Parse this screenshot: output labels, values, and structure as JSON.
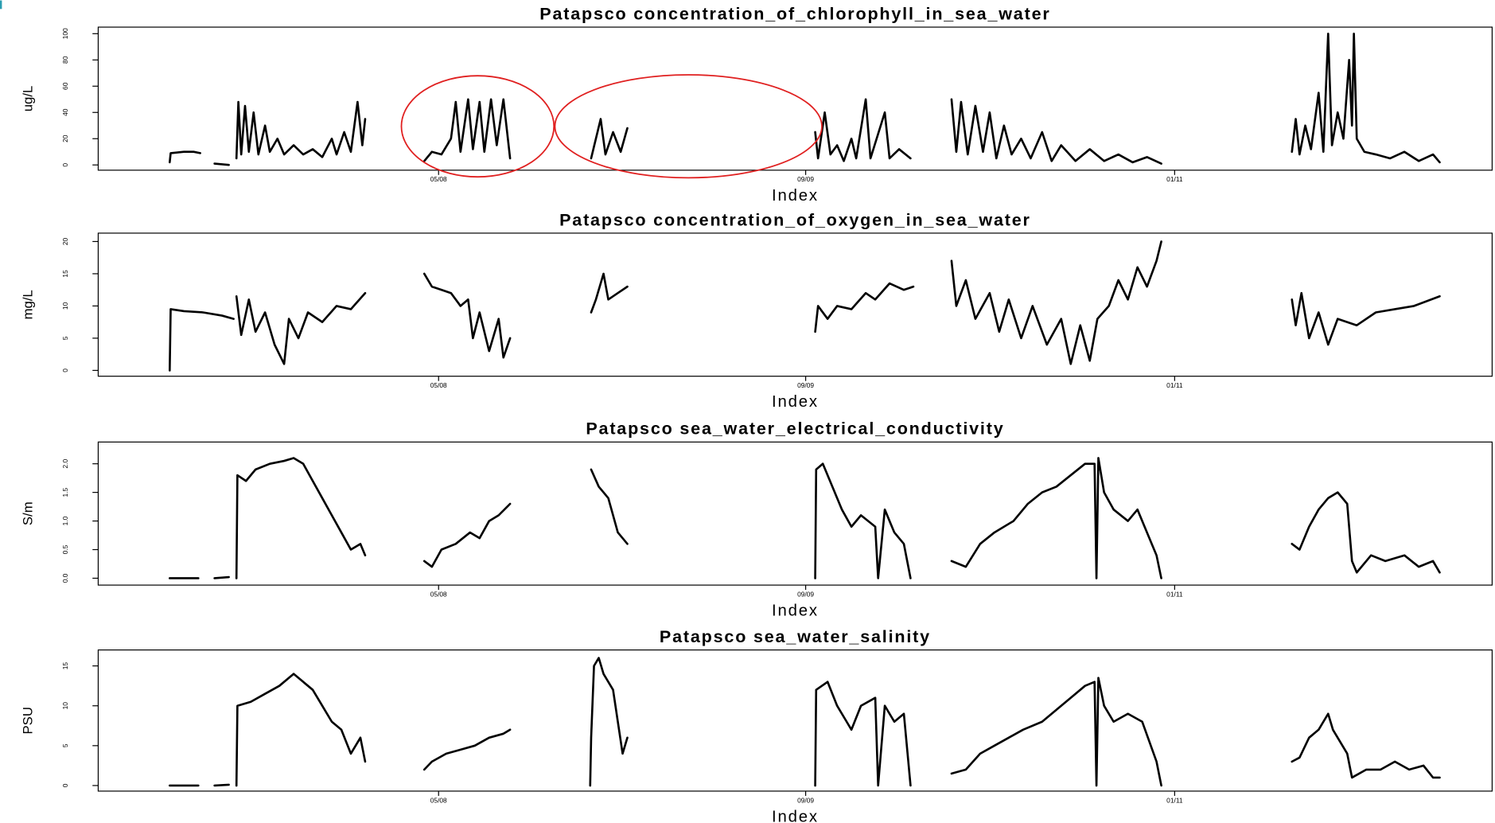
{
  "chart_data": [
    {
      "type": "line",
      "title": "Patapsco concentration_of_chlorophyll_in_sea_water",
      "xlabel": "Index",
      "ylabel": "ug/L",
      "color": "#000000",
      "xlim": [
        0,
        1462
      ],
      "xticks": [
        {
          "value": 357,
          "label": "05/08"
        },
        {
          "value": 742,
          "label": "09/09"
        },
        {
          "value": 1129,
          "label": "01/11"
        }
      ],
      "ylim": [
        -4,
        105
      ],
      "yticks": [
        0,
        20,
        40,
        60,
        80,
        100
      ],
      "x": [
        75,
        76,
        90,
        100,
        107,
        115,
        122,
        137,
        141,
        145,
        147,
        150,
        154,
        158,
        163,
        168,
        175,
        180,
        188,
        195,
        205,
        215,
        225,
        235,
        245,
        250,
        258,
        265,
        272,
        277,
        280,
        311,
        342,
        350,
        360,
        370,
        375,
        380,
        388,
        393,
        400,
        405,
        412,
        418,
        425,
        432,
        475,
        517,
        522,
        527,
        532,
        540,
        548,
        555,
        643,
        730,
        741,
        752,
        755,
        762,
        768,
        775,
        782,
        790,
        795,
        805,
        810,
        825,
        830,
        840,
        852,
        874,
        895,
        900,
        905,
        912,
        920,
        928,
        935,
        942,
        950,
        958,
        968,
        978,
        990,
        1000,
        1010,
        1025,
        1040,
        1055,
        1070,
        1085,
        1100,
        1115,
        1184,
        1252,
        1256,
        1260,
        1266,
        1272,
        1280,
        1285,
        1290,
        1294,
        1300,
        1306,
        1312,
        1315,
        1317,
        1320,
        1328,
        1340,
        1355,
        1370,
        1385,
        1400,
        1407
      ],
      "values": [
        2,
        9,
        10,
        10,
        9,
        null,
        1,
        0,
        null,
        5,
        48,
        8,
        45,
        10,
        40,
        8,
        30,
        10,
        20,
        8,
        15,
        8,
        12,
        6,
        20,
        8,
        25,
        10,
        48,
        15,
        35,
        null,
        3,
        10,
        8,
        20,
        48,
        10,
        50,
        12,
        48,
        10,
        50,
        15,
        50,
        5,
        null,
        5,
        20,
        35,
        8,
        25,
        10,
        28,
        null,
        0,
        null,
        25,
        5,
        40,
        8,
        15,
        3,
        20,
        5,
        50,
        5,
        40,
        5,
        12,
        5,
        null,
        50,
        10,
        48,
        8,
        45,
        10,
        40,
        5,
        30,
        8,
        20,
        5,
        25,
        3,
        15,
        3,
        12,
        3,
        8,
        2,
        6,
        1,
        null,
        10,
        35,
        8,
        30,
        12,
        55,
        10,
        100,
        15,
        40,
        20,
        80,
        30,
        100,
        20,
        10,
        8,
        5,
        10,
        3,
        8,
        2
      ]
    },
    {
      "type": "line",
      "title": "Patapsco concentration_of_oxygen_in_sea_water",
      "xlabel": "Index",
      "ylabel": "mg/L",
      "color": "#000000",
      "xlim": [
        0,
        1462
      ],
      "xticks": [
        {
          "value": 357,
          "label": "05/08"
        },
        {
          "value": 742,
          "label": "09/09"
        },
        {
          "value": 1129,
          "label": "01/11"
        }
      ],
      "ylim": [
        -0.9,
        21.3
      ],
      "yticks": [
        0,
        5,
        10,
        15,
        20
      ],
      "x": [
        75,
        76,
        90,
        110,
        130,
        142,
        143,
        145,
        150,
        158,
        165,
        175,
        185,
        195,
        200,
        210,
        220,
        235,
        250,
        265,
        280,
        311,
        342,
        350,
        360,
        370,
        380,
        388,
        393,
        400,
        410,
        420,
        425,
        432,
        475,
        517,
        522,
        530,
        535,
        545,
        555,
        640,
        728,
        740,
        752,
        755,
        765,
        775,
        790,
        805,
        815,
        830,
        845,
        855,
        875,
        895,
        900,
        910,
        920,
        935,
        945,
        955,
        968,
        980,
        995,
        1010,
        1020,
        1030,
        1040,
        1048,
        1060,
        1070,
        1080,
        1090,
        1100,
        1110,
        1115,
        1184,
        1252,
        1256,
        1262,
        1270,
        1280,
        1290,
        1300,
        1320,
        1340,
        1360,
        1380,
        1407
      ],
      "values": [
        0,
        9.5,
        9.2,
        9,
        8.5,
        8,
        null,
        11.5,
        5.5,
        11,
        6,
        9,
        4,
        1,
        8,
        5,
        9,
        7.5,
        10,
        9.5,
        12,
        null,
        15,
        13,
        12.5,
        12,
        10,
        11,
        5,
        9,
        3,
        8,
        2,
        5,
        null,
        9,
        11,
        15,
        11,
        12,
        13,
        null,
        6,
        null,
        6,
        10,
        8,
        10,
        9.5,
        12,
        11,
        13.5,
        12.5,
        13,
        null,
        17,
        10,
        14,
        8,
        12,
        6,
        11,
        5,
        10,
        4,
        8,
        1,
        7,
        1.5,
        8,
        10,
        14,
        11,
        16,
        13,
        17,
        20,
        null,
        11,
        7,
        12,
        5,
        9,
        4,
        8,
        7,
        9,
        9.5,
        10,
        11.5
      ]
    },
    {
      "type": "line",
      "title": "Patapsco sea_water_electrical_conductivity",
      "xlabel": "Index",
      "ylabel": "S/m",
      "color": "#000000",
      "xlim": [
        0,
        1462
      ],
      "xticks": [
        {
          "value": 357,
          "label": "05/08"
        },
        {
          "value": 742,
          "label": "09/09"
        },
        {
          "value": 1129,
          "label": "01/11"
        }
      ],
      "ylim": [
        -0.12,
        2.38
      ],
      "yticks": [
        {
          "value": 0,
          "label": "0.0"
        },
        0.5,
        {
          "value": 1,
          "label": "1.0"
        },
        1.5,
        {
          "value": 2,
          "label": "2.0"
        }
      ],
      "x": [
        75,
        105,
        113,
        122,
        137,
        141,
        145,
        146,
        155,
        165,
        180,
        195,
        205,
        215,
        225,
        235,
        245,
        255,
        265,
        275,
        280,
        311,
        342,
        350,
        360,
        375,
        390,
        400,
        410,
        420,
        432,
        475,
        517,
        525,
        535,
        545,
        555,
        640,
        728,
        740,
        752,
        753,
        760,
        770,
        780,
        790,
        800,
        815,
        818,
        825,
        835,
        845,
        852,
        874,
        895,
        910,
        925,
        940,
        960,
        975,
        990,
        1005,
        1020,
        1035,
        1045,
        1047,
        1049,
        1055,
        1065,
        1080,
        1090,
        1100,
        1110,
        1115,
        1184,
        1252,
        1260,
        1270,
        1280,
        1290,
        1300,
        1310,
        1315,
        1320,
        1335,
        1350,
        1370,
        1385,
        1400,
        1407
      ],
      "values": [
        0,
        0,
        null,
        0,
        0.02,
        null,
        0,
        1.8,
        1.7,
        1.9,
        2.0,
        2.05,
        2.1,
        2.0,
        1.7,
        1.4,
        1.1,
        0.8,
        0.5,
        0.6,
        0.4,
        null,
        0.3,
        0.2,
        0.5,
        0.6,
        0.8,
        0.7,
        1.0,
        1.1,
        1.3,
        null,
        1.9,
        1.6,
        1.4,
        0.8,
        0.6,
        null,
        1.2,
        null,
        0,
        1.9,
        2.0,
        1.6,
        1.2,
        0.9,
        1.1,
        0.9,
        0,
        1.2,
        0.8,
        0.6,
        0,
        null,
        0.3,
        0.2,
        0.6,
        0.8,
        1.0,
        1.3,
        1.5,
        1.6,
        1.8,
        2.0,
        2.0,
        0,
        2.1,
        1.5,
        1.2,
        1.0,
        1.2,
        0.8,
        0.4,
        0,
        null,
        0.6,
        0.5,
        0.9,
        1.2,
        1.4,
        1.5,
        1.3,
        0.3,
        0.1,
        0.4,
        0.3,
        0.4,
        0.2,
        0.3,
        0.1
      ]
    },
    {
      "type": "line",
      "title": "Patapsco sea_water_salinity",
      "xlabel": "Index",
      "ylabel": "PSU",
      "color": "#000000",
      "xlim": [
        0,
        1462
      ],
      "xticks": [
        {
          "value": 357,
          "label": "05/08"
        },
        {
          "value": 742,
          "label": "09/09"
        },
        {
          "value": 1129,
          "label": "01/11"
        }
      ],
      "ylim": [
        -0.7,
        17
      ],
      "yticks": [
        0,
        5,
        10,
        15
      ],
      "x": [
        75,
        105,
        113,
        122,
        137,
        141,
        145,
        146,
        160,
        175,
        190,
        205,
        215,
        225,
        235,
        245,
        255,
        265,
        275,
        280,
        311,
        342,
        350,
        365,
        380,
        395,
        410,
        425,
        432,
        474,
        516,
        517,
        520,
        525,
        530,
        540,
        545,
        550,
        555,
        640,
        728,
        740,
        752,
        753,
        765,
        775,
        785,
        790,
        800,
        815,
        818,
        825,
        835,
        845,
        852,
        874,
        895,
        910,
        925,
        940,
        955,
        970,
        990,
        1005,
        1020,
        1035,
        1045,
        1047,
        1049,
        1055,
        1065,
        1080,
        1095,
        1110,
        1115,
        1184,
        1252,
        1260,
        1270,
        1280,
        1290,
        1295,
        1310,
        1315,
        1330,
        1345,
        1360,
        1375,
        1390,
        1400,
        1407
      ],
      "values": [
        0,
        0,
        null,
        0,
        0.1,
        null,
        0,
        10,
        10.5,
        11.5,
        12.5,
        14,
        13,
        12,
        10,
        8,
        7,
        4,
        6,
        3,
        null,
        2,
        3,
        4,
        4.5,
        5,
        6,
        6.5,
        7,
        null,
        0,
        6,
        15,
        16,
        14,
        12,
        8,
        4,
        6,
        null,
        6,
        null,
        0,
        12,
        13,
        10,
        8,
        7,
        10,
        11,
        0,
        10,
        8,
        9,
        0,
        null,
        1.5,
        2,
        4,
        5,
        6,
        7,
        8,
        9.5,
        11,
        12.5,
        13,
        0,
        13.5,
        10,
        8,
        9,
        8,
        3,
        0,
        null,
        3,
        3.5,
        6,
        7,
        9,
        7,
        4,
        1,
        2,
        2,
        3,
        2,
        2.5,
        1,
        1
      ]
    }
  ]
}
